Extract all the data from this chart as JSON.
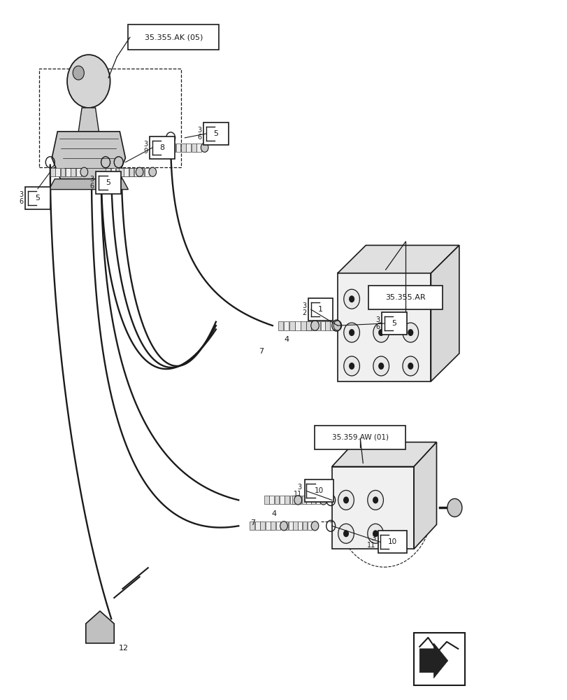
{
  "bg_color": "#ffffff",
  "line_color": "#1a1a1a",
  "fig_width": 8.12,
  "fig_height": 10.0,
  "labels": {
    "ref1": "35.355.AK (05)",
    "ref2": "35.355.AR",
    "ref3": "35.359.AW (01)"
  }
}
